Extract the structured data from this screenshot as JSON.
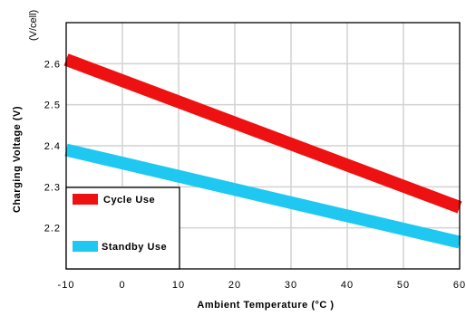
{
  "chart_data": {
    "type": "line",
    "xlabel": "Ambient Temperature (°C )",
    "ylabel": "Charging Voltage (V)",
    "unit_label": "(V/cell)",
    "xlim": [
      -10,
      60
    ],
    "ylim": [
      2.1,
      2.7
    ],
    "x_ticks": [
      -10,
      0,
      10,
      20,
      30,
      40,
      50,
      60
    ],
    "x_tick_labels": [
      "-10",
      "0",
      "10",
      "20",
      "30",
      "40",
      "50",
      "60"
    ],
    "y_ticks": [
      2.2,
      2.3,
      2.4,
      2.5,
      2.6
    ],
    "y_tick_labels": [
      "2.2",
      "2.3",
      "2.4",
      "2.5",
      "2.6"
    ],
    "grid": true,
    "legend_position": "bottom-left",
    "series": [
      {
        "name": "Cycle Use",
        "color": "#ee1111",
        "x": [
          -10,
          60
        ],
        "y": [
          2.61,
          2.25
        ]
      },
      {
        "name": "Standby Use",
        "color": "#1ec8f0",
        "x": [
          -10,
          60
        ],
        "y": [
          2.39,
          2.165
        ]
      }
    ]
  }
}
